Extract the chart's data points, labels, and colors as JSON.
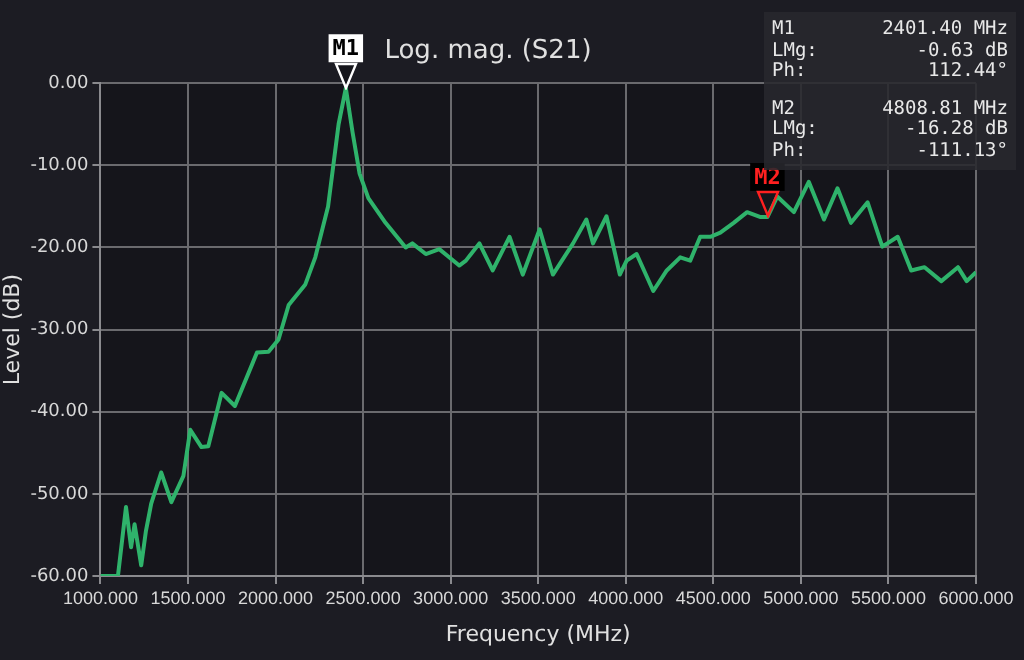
{
  "chart_data": {
    "type": "line",
    "title": "Log. mag. (S21)",
    "xlabel": "Frequency (MHz)",
    "ylabel": "Level (dB)",
    "series": [
      {
        "color": "#2fb36b",
        "x": [
          1000,
          1100,
          1146,
          1175,
          1195,
          1233,
          1260,
          1290,
          1347,
          1405,
          1474,
          1513,
          1577,
          1616,
          1692,
          1768,
          1894,
          1960,
          2017,
          2075,
          2170,
          2227,
          2247,
          2300,
          2360,
          2401.4,
          2440,
          2480,
          2530,
          2628,
          2743,
          2781,
          2858,
          2935,
          3049,
          3087,
          3164,
          3240,
          3336,
          3412,
          3508,
          3584,
          3699,
          3775,
          3813,
          3890,
          3966,
          4005,
          4062,
          4157,
          4234,
          4311,
          4368,
          4425,
          4483,
          4540,
          4616,
          4693,
          4770,
          4808.81,
          4865,
          4960,
          5045,
          5132,
          5209,
          5286,
          5381,
          5465,
          5553,
          5630,
          5706,
          5802,
          5897,
          5947,
          6000
        ],
        "values": [
          -60,
          -60,
          -51.6,
          -56.5,
          -53.7,
          -58.7,
          -54.5,
          -51.2,
          -47.4,
          -51,
          -47.8,
          -42.2,
          -44.3,
          -44.2,
          -37.7,
          -39.3,
          -32.8,
          -32.7,
          -31.2,
          -27,
          -24.5,
          -21.2,
          -19.5,
          -15,
          -5,
          -0.6,
          -6,
          -11,
          -14,
          -17,
          -20,
          -19.5,
          -20.8,
          -20.2,
          -22.2,
          -21.6,
          -19.5,
          -22.8,
          -18.7,
          -23.3,
          -17.8,
          -23.3,
          -19.5,
          -16.6,
          -19.5,
          -16.2,
          -23.3,
          -21.6,
          -20.8,
          -25.3,
          -22.8,
          -21.2,
          -21.6,
          -18.7,
          -18.7,
          -18.2,
          -17,
          -15.7,
          -16.3,
          -16.3,
          -13.8,
          -15.7,
          -12,
          -16.6,
          -12.8,
          -17,
          -14.5,
          -19.9,
          -18.7,
          -22.8,
          -22.4,
          -24.1,
          -22.4,
          -24.1,
          -23
        ]
      }
    ],
    "xlim": [
      1000,
      6000
    ],
    "xticks": [
      {
        "value": 1000,
        "label": "1000.000"
      },
      {
        "value": 1500,
        "label": "1500.000"
      },
      {
        "value": 2000,
        "label": "2000.000"
      },
      {
        "value": 2500,
        "label": "2500.000"
      },
      {
        "value": 3000,
        "label": "3000.000"
      },
      {
        "value": 3500,
        "label": "3500.000"
      },
      {
        "value": 4000,
        "label": "4000.000"
      },
      {
        "value": 4500,
        "label": "4500.000"
      },
      {
        "value": 5000,
        "label": "5000.000"
      },
      {
        "value": 5500,
        "label": "5500.000"
      },
      {
        "value": 6000,
        "label": "6000.000"
      }
    ],
    "ylim": [
      -60,
      0
    ],
    "yticks": [
      {
        "value": -60,
        "label": "-60.00"
      },
      {
        "value": -50,
        "label": "-50.00"
      },
      {
        "value": -40,
        "label": "-40.00"
      },
      {
        "value": -30,
        "label": "-30.00"
      },
      {
        "value": -20,
        "label": "-20.00"
      },
      {
        "value": -10,
        "label": "-10.00"
      },
      {
        "value": 0,
        "label": "0.00"
      }
    ],
    "grid": true,
    "marker": "none",
    "line_style": "solid",
    "annotations": [
      {
        "text": "M1",
        "x": 2401.4,
        "y": -0.63
      },
      {
        "text": "M2",
        "x": 4808.81,
        "y": -16.28
      },
      "M1 2401.40 MHz",
      "LMg: -0.63 dB",
      "Ph: 112.44°",
      "M2 4808.81 MHz",
      "LMg: -16.28 dB",
      "Ph: -111.13°"
    ]
  }
}
